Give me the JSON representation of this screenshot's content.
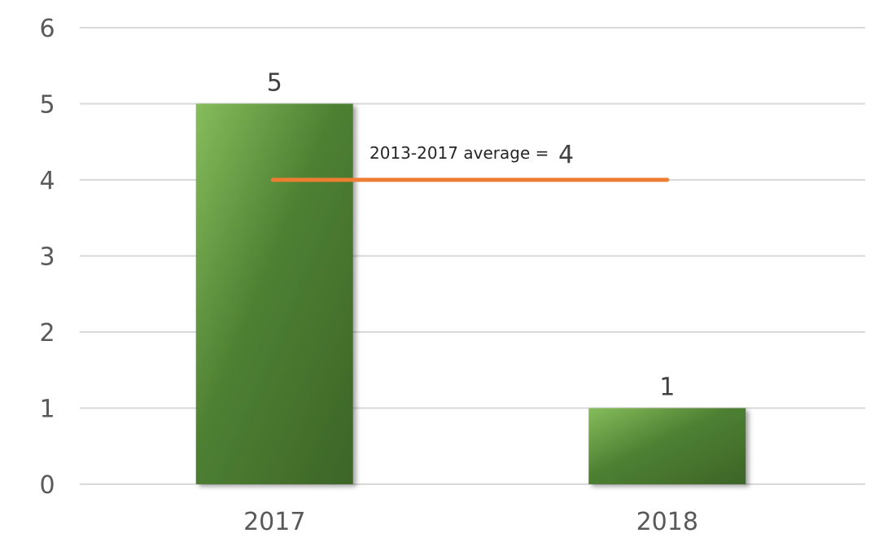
{
  "chart_data": {
    "type": "bar",
    "categories": [
      "2017",
      "2018"
    ],
    "values": [
      5,
      1
    ],
    "data_labels": [
      "5",
      "1"
    ],
    "title": "",
    "xlabel": "",
    "ylabel": "",
    "ylim": [
      0,
      6
    ],
    "y_ticks": [
      0,
      1,
      2,
      3,
      4,
      5,
      6
    ],
    "grid": true,
    "legend": "none",
    "bar_color": "#4e8032",
    "reference_line": {
      "label": "2013-2017 average =",
      "value": 4,
      "value_label": "4",
      "color": "#ed7d31"
    }
  }
}
